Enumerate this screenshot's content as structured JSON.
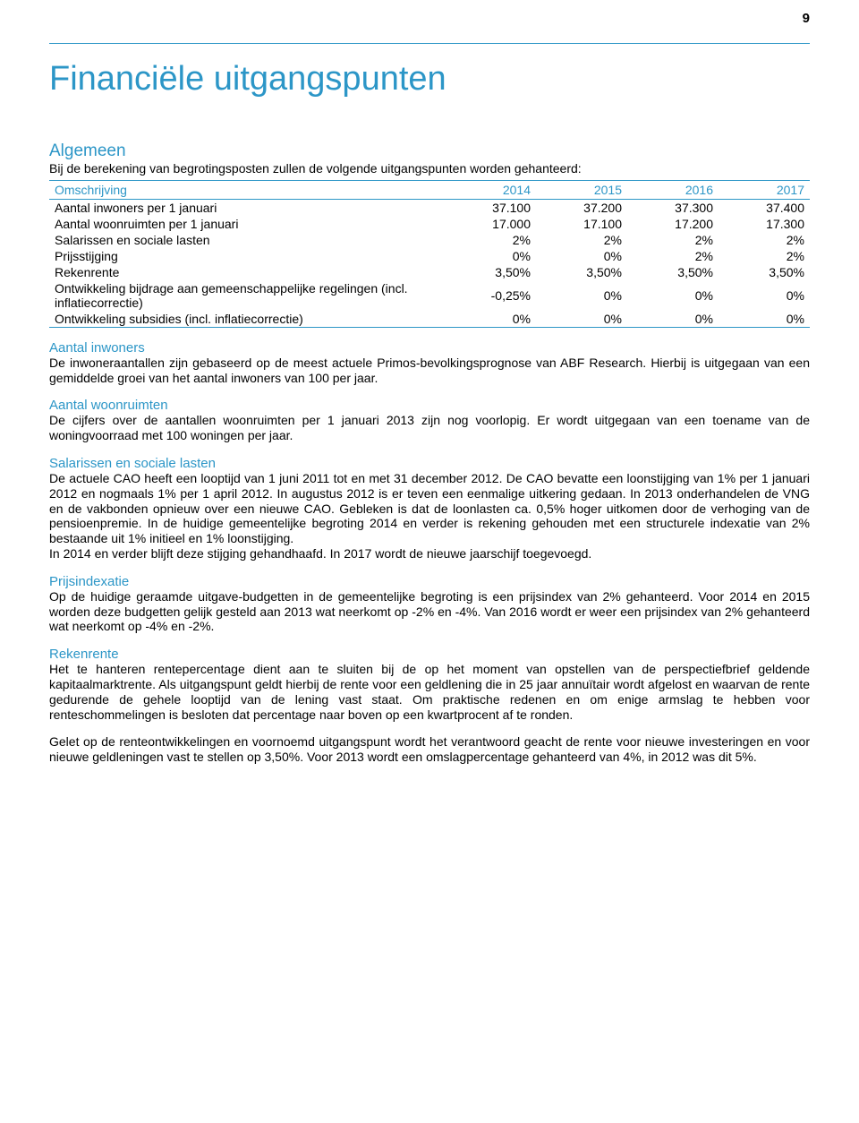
{
  "page_number": "9",
  "title": "Financiële uitgangspunten",
  "section_algemeen": {
    "heading": "Algemeen",
    "intro": "Bij de berekening van begrotingsposten zullen de volgende uitgangspunten worden gehanteerd:"
  },
  "table": {
    "columns": [
      "Omschrijving",
      "2014",
      "2015",
      "2016",
      "2017"
    ],
    "rows": [
      [
        "Aantal inwoners per 1 januari",
        "37.100",
        "37.200",
        "37.300",
        "37.400"
      ],
      [
        "Aantal woonruimten per 1 januari",
        "17.000",
        "17.100",
        "17.200",
        "17.300"
      ],
      [
        "Salarissen en sociale lasten",
        "2%",
        "2%",
        "2%",
        "2%"
      ],
      [
        "Prijsstijging",
        "0%",
        "0%",
        "2%",
        "2%"
      ],
      [
        "Rekenrente",
        "3,50%",
        "3,50%",
        "3,50%",
        "3,50%"
      ],
      [
        "Ontwikkeling bijdrage aan gemeenschappelijke regelingen (incl. inflatiecorrectie)",
        "-0,25%",
        "0%",
        "0%",
        "0%"
      ],
      [
        "Ontwikkeling subsidies (incl. inflatiecorrectie)",
        "0%",
        "0%",
        "0%",
        "0%"
      ]
    ],
    "col1_width": "52%",
    "col_width": "12%",
    "header_color": "#2c96c7",
    "border_color": "#2c96c7"
  },
  "sections": {
    "inwoners": {
      "heading": "Aantal inwoners",
      "text": "De inwoneraantallen zijn gebaseerd op de meest actuele Primos-bevolkingsprognose van ABF Research. Hierbij is uitgegaan van een gemiddelde groei van het aantal inwoners van 100 per jaar."
    },
    "woonruimten": {
      "heading": "Aantal woonruimten",
      "text": "De cijfers over de aantallen woonruimten per 1 januari 2013 zijn nog voorlopig. Er wordt uitgegaan van een toename van de woningvoorraad met 100 woningen per jaar."
    },
    "salarissen": {
      "heading": "Salarissen en sociale lasten",
      "text": "De actuele CAO heeft een looptijd van 1 juni 2011 tot en met 31 december 2012. De CAO bevatte een loonstijging van 1% per 1 januari 2012 en nogmaals 1% per 1 april 2012. In augustus 2012 is er teven een eenmalige uitkering gedaan. In 2013 onderhandelen de VNG en de vakbonden opnieuw over een nieuwe CAO. Gebleken is dat de loonlasten ca. 0,5% hoger uitkomen door de verhoging van de pensioenpremie. In de huidige gemeentelijke begroting 2014 en verder is rekening gehouden met een structurele indexatie van 2% bestaande uit 1% initieel en 1% loonstijging.",
      "text2": "In 2014 en verder blijft deze stijging gehandhaafd. In 2017 wordt de nieuwe jaarschijf toegevoegd."
    },
    "prijsindexatie": {
      "heading": "Prijsindexatie",
      "text": "Op de huidige geraamde uitgave-budgetten in de gemeentelijke begroting is een prijsindex van 2% gehanteerd. Voor 2014 en 2015 worden deze budgetten gelijk gesteld aan 2013 wat neerkomt op -2% en -4%. Van 2016 wordt er weer een prijsindex van 2% gehanteerd wat neerkomt op -4% en -2%."
    },
    "rekenrente": {
      "heading": "Rekenrente",
      "text": "Het te hanteren rentepercentage dient aan te sluiten bij de op het moment van opstellen van de perspectiefbrief geldende kapitaalmarktrente. Als uitgangspunt geldt hierbij de rente voor een geldlening die in 25 jaar annuïtair wordt afgelost en waarvan de rente gedurende de gehele looptijd van de lening vast staat. Om praktische redenen en om enige armslag te hebben voor renteschommelingen is besloten dat percentage naar boven op een kwartprocent af te ronden.",
      "text2": "Gelet op de renteontwikkelingen en voornoemd uitgangspunt wordt het verantwoord geacht de rente voor nieuwe investeringen en voor nieuwe geldleningen vast te stellen op 3,50%. Voor 2013 wordt een omslagpercentage gehanteerd van 4%, in 2012 was dit 5%."
    }
  },
  "colors": {
    "accent": "#2c96c7",
    "text": "#000000",
    "background": "#ffffff"
  }
}
